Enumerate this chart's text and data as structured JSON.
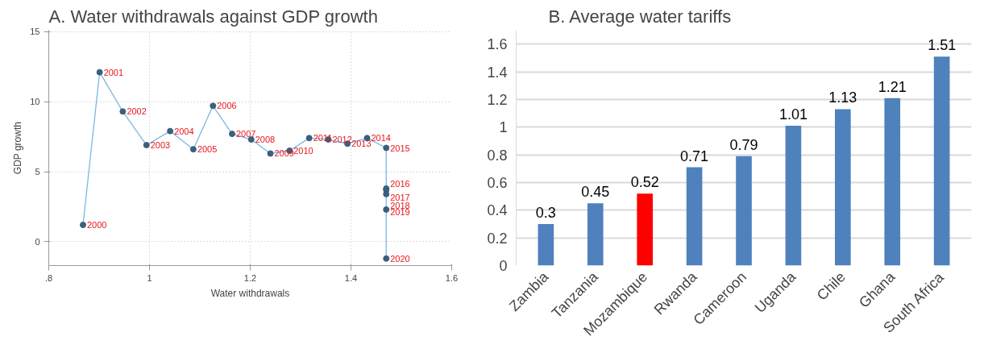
{
  "chart_data": [
    {
      "type": "line",
      "title": "A.   Water withdrawals against GDP growth",
      "xlabel": "Water withdrawals",
      "ylabel": "GDP growth",
      "xlim": [
        0.8,
        1.6
      ],
      "xticks": [
        {
          "value": 0.8,
          "label": ".8"
        },
        1,
        1.2,
        1.4,
        1.6
      ],
      "ylim": [
        -1.7,
        15.1
      ],
      "yticks": [
        0,
        5,
        10,
        15
      ],
      "grid": true,
      "marker": "circle",
      "series": [
        {
          "color": "#7ab8e0",
          "x": [
            0.868,
            0.901,
            0.947,
            0.994,
            1.041,
            1.087,
            1.126,
            1.164,
            1.202,
            1.24,
            1.278,
            1.317,
            1.355,
            1.393,
            1.432,
            1.47,
            1.47,
            1.47,
            1.47,
            1.47,
            1.47
          ],
          "values": [
            1.2,
            12.1,
            9.3,
            6.9,
            7.9,
            6.6,
            9.7,
            7.7,
            7.3,
            6.3,
            6.5,
            7.4,
            7.3,
            7.0,
            7.4,
            6.7,
            3.8,
            3.7,
            3.4,
            2.3,
            -1.2
          ],
          "colors": [
            "#3b5f7e",
            "#3b5f7e",
            "#3b5f7e",
            "#3b5f7e",
            "#3b5f7e",
            "#3b5f7e",
            "#3b5f7e",
            "#3b5f7e",
            "#3b5f7e",
            "#3b5f7e",
            "#3b5f7e",
            "#3b5f7e",
            "#3b5f7e",
            "#3b5f7e",
            "#3b5f7e",
            "#3b5f7e",
            "#3b5f7e",
            "#3b5f7e",
            "#3b5f7e",
            "#3b5f7e",
            "#3b5f7e"
          ]
        }
      ],
      "annotations": [
        {
          "text": "2000",
          "x": 0.868,
          "y": 1.2
        },
        {
          "text": "2001",
          "x": 0.901,
          "y": 12.1
        },
        {
          "text": "2002",
          "x": 0.947,
          "y": 9.3
        },
        {
          "text": "2003",
          "x": 0.994,
          "y": 6.9
        },
        {
          "text": "2004",
          "x": 1.041,
          "y": 7.9
        },
        {
          "text": "2005",
          "x": 1.087,
          "y": 6.6
        },
        {
          "text": "2006",
          "x": 1.126,
          "y": 9.7
        },
        {
          "text": "2007",
          "x": 1.164,
          "y": 7.7
        },
        {
          "text": "2008",
          "x": 1.202,
          "y": 7.3
        },
        {
          "text": "2009",
          "x": 1.24,
          "y": 6.3
        },
        {
          "text": "2010",
          "x": 1.278,
          "y": 6.5
        },
        {
          "text": "2011",
          "x": 1.317,
          "y": 7.4
        },
        {
          "text": "2012",
          "x": 1.355,
          "y": 7.3
        },
        {
          "text": "2013",
          "x": 1.393,
          "y": 7.0
        },
        {
          "text": "2014",
          "x": 1.432,
          "y": 7.4
        },
        {
          "text": "2015",
          "x": 1.47,
          "y": 6.7
        },
        {
          "text": "2016",
          "x": 1.47,
          "y": 3.8
        },
        {
          "text": "2017",
          "x": 1.47,
          "y": 3.7
        },
        {
          "text": "2018",
          "x": 1.47,
          "y": 3.4
        },
        {
          "text": "2019",
          "x": 1.47,
          "y": 2.3
        },
        {
          "text": "2020",
          "x": 1.47,
          "y": -1.2
        }
      ]
    },
    {
      "type": "bar",
      "title": "B.    Average water tariffs",
      "categories": [
        "Zambia",
        "Tanzania",
        "Mozambique",
        "Rwanda",
        "Cameroon",
        "Uganda",
        "Chile",
        "Ghana",
        "South Africa"
      ],
      "values": [
        0.3,
        0.45,
        0.52,
        0.71,
        0.79,
        1.01,
        1.13,
        1.21,
        1.51
      ],
      "colors": [
        "#4f81bd",
        "#4f81bd",
        "#ff0000",
        "#4f81bd",
        "#4f81bd",
        "#4f81bd",
        "#4f81bd",
        "#4f81bd",
        "#4f81bd"
      ],
      "ylim": [
        0,
        1.7
      ],
      "yticks": [
        0,
        0.2,
        0.4,
        0.6,
        0.8,
        1,
        1.2,
        1.4,
        1.6
      ],
      "grid": "y",
      "data_labels": true
    }
  ]
}
